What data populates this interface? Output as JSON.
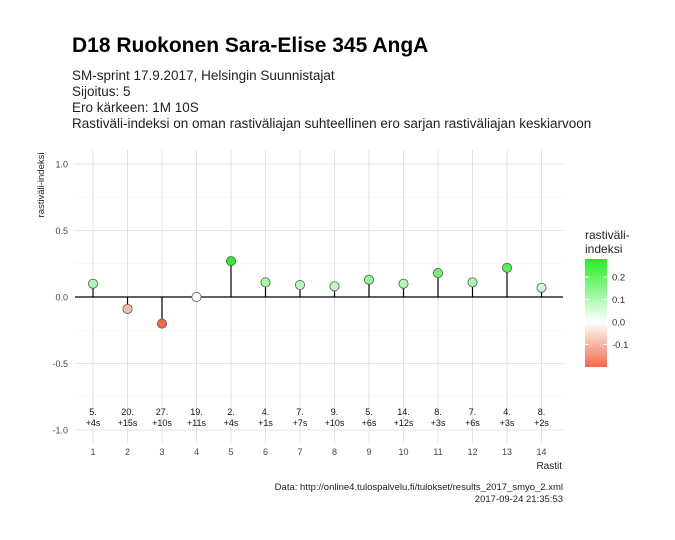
{
  "header": {
    "title": "D18 Ruokonen Sara-Elise 345 AngA",
    "subtitle_lines": [
      "SM-sprint 17.9.2017, Helsingin Suunnistajat",
      "Sijoitus: 5",
      "Ero kärkeen: 1M 10S",
      "Rastiväli-indeksi on oman rastiväliajan suhteellinen ero sarjan rastiväliajan keskiarvoon"
    ]
  },
  "caption": {
    "source": "Data: http://online4.tulospalvelu.fi/tulokset/results_2017_smyo_2.xml",
    "timestamp": "2017-09-24 21:35:53"
  },
  "chart_data": {
    "type": "lollipop",
    "xlabel": "Rastit",
    "ylabel": "rastiväli-indeksi",
    "ylim": [
      -1.0,
      1.0
    ],
    "y_ticks": [
      -1.0,
      -0.5,
      0.0,
      0.5,
      1.0
    ],
    "y_tick_labels": [
      "-1.0",
      "-0.5",
      "0.0",
      "0.5",
      "1.0"
    ],
    "x": [
      1,
      2,
      3,
      4,
      5,
      6,
      7,
      8,
      9,
      10,
      11,
      12,
      13,
      14
    ],
    "values": [
      0.1,
      -0.09,
      -0.2,
      0.0,
      0.27,
      0.11,
      0.09,
      0.08,
      0.13,
      0.1,
      0.18,
      0.11,
      0.22,
      0.07
    ],
    "rank_labels": [
      "5.",
      "20.",
      "27.",
      "19.",
      "2.",
      "4.",
      "7.",
      "9.",
      "5.",
      "14.",
      "8.",
      "7.",
      "4.",
      "8."
    ],
    "diff_labels": [
      "+4s",
      "+15s",
      "+10s",
      "+11s",
      "+4s",
      "+1s",
      "+7s",
      "+10s",
      "+6s",
      "+12s",
      "+3s",
      "+6s",
      "+3s",
      "+2s"
    ],
    "grid": true,
    "legend": {
      "title_lines": [
        "rastiväli-",
        "indeksi"
      ],
      "ticks": [
        0.2,
        0.1,
        0.0,
        -0.1
      ],
      "tick_labels": [
        "0.2",
        "0.1",
        "0.0",
        "-0.1"
      ],
      "range": [
        -0.2,
        0.28
      ],
      "colors": {
        "high": "#22ee22",
        "mid": "#ffffff",
        "low": "#f4694b"
      }
    }
  }
}
